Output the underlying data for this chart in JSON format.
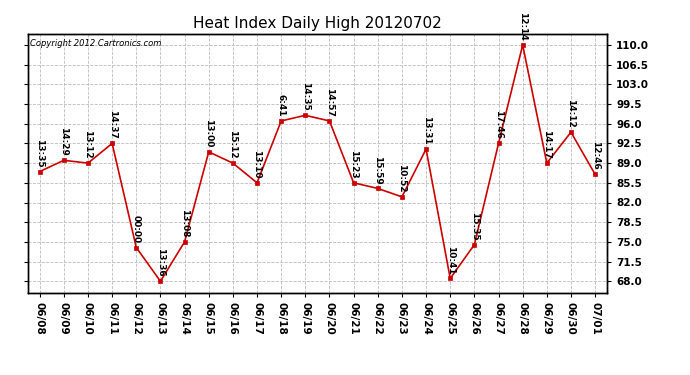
{
  "title": "Heat Index Daily High 20120702",
  "copyright": "Copyright 2012 Cartronics.com",
  "dates": [
    "06/08",
    "06/09",
    "06/10",
    "06/11",
    "06/12",
    "06/13",
    "06/14",
    "06/15",
    "06/16",
    "06/17",
    "06/18",
    "06/19",
    "06/20",
    "06/21",
    "06/22",
    "06/23",
    "06/24",
    "06/25",
    "06/26",
    "06/27",
    "06/28",
    "06/29",
    "06/30",
    "07/01"
  ],
  "values": [
    87.5,
    89.5,
    89.0,
    92.5,
    74.0,
    68.0,
    75.0,
    91.0,
    89.0,
    85.5,
    96.5,
    97.5,
    96.5,
    85.5,
    84.5,
    83.0,
    91.5,
    68.5,
    74.5,
    92.5,
    110.0,
    89.0,
    94.5,
    87.0
  ],
  "labels": [
    "13:35",
    "14:29",
    "13:12",
    "14:37",
    "00:00",
    "13:36",
    "13:08",
    "13:00",
    "15:12",
    "13:10",
    "6:41",
    "14:35",
    "14:57",
    "15:23",
    "15:59",
    "10:52",
    "13:31",
    "10:41",
    "15:35",
    "17:46",
    "12:14",
    "14:17",
    "14:12",
    "12:46"
  ],
  "line_color": "#cc0000",
  "marker_color": "#cc0000",
  "bg_color": "#ffffff",
  "grid_color": "#bbbbbb",
  "title_fontsize": 11,
  "label_fontsize": 6.5,
  "tick_fontsize": 7.5,
  "ylim": [
    66,
    112
  ],
  "yticks": [
    68.0,
    71.5,
    75.0,
    78.5,
    82.0,
    85.5,
    89.0,
    92.5,
    96.0,
    99.5,
    103.0,
    106.5,
    110.0
  ]
}
